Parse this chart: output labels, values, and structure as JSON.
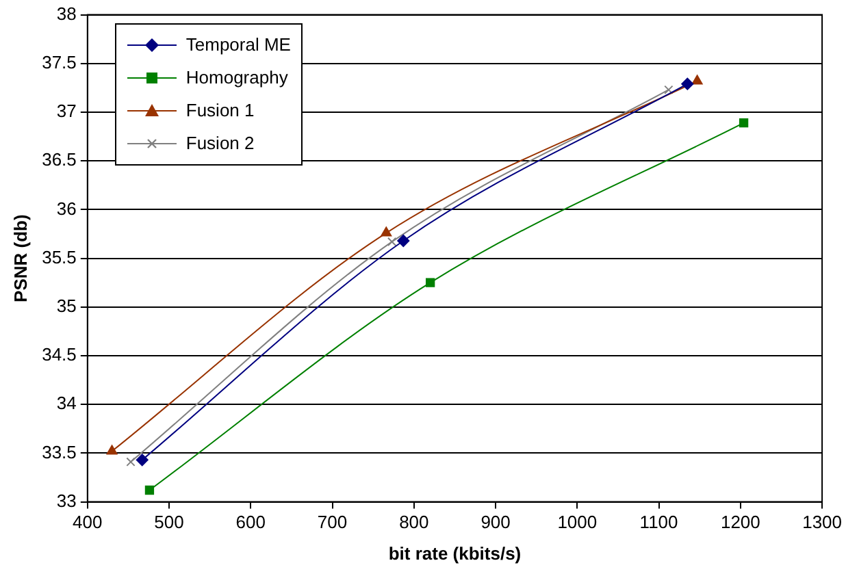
{
  "chart_data": {
    "type": "line",
    "xlabel": "bit rate (kbits/s)",
    "ylabel": "PSNR (db)",
    "xlim": [
      400,
      1300
    ],
    "xticks": [
      400,
      500,
      600,
      700,
      800,
      900,
      1000,
      1100,
      1200,
      1300
    ],
    "ylim": [
      33,
      38
    ],
    "yticks": [
      33,
      33.5,
      34,
      34.5,
      35,
      35.5,
      36,
      36.5,
      37,
      37.5,
      38
    ],
    "grid": "y",
    "legend": "top left",
    "series": [
      {
        "name": "Temporal ME",
        "color": "#000080",
        "marker": "diamond",
        "x": [
          467,
          787,
          1135
        ],
        "values": [
          33.43,
          35.68,
          37.29
        ]
      },
      {
        "name": "Homography",
        "color": "#008000",
        "marker": "square",
        "x": [
          476,
          820,
          1204
        ],
        "values": [
          33.12,
          35.25,
          36.89
        ]
      },
      {
        "name": "Fusion 1",
        "color": "#993300",
        "marker": "triangle",
        "x": [
          430,
          766,
          1147
        ],
        "values": [
          33.52,
          35.76,
          37.32
        ]
      },
      {
        "name": "Fusion 2",
        "color": "#808080",
        "marker": "cross",
        "x": [
          453,
          773,
          1112
        ],
        "values": [
          33.41,
          35.67,
          37.23
        ]
      }
    ]
  }
}
